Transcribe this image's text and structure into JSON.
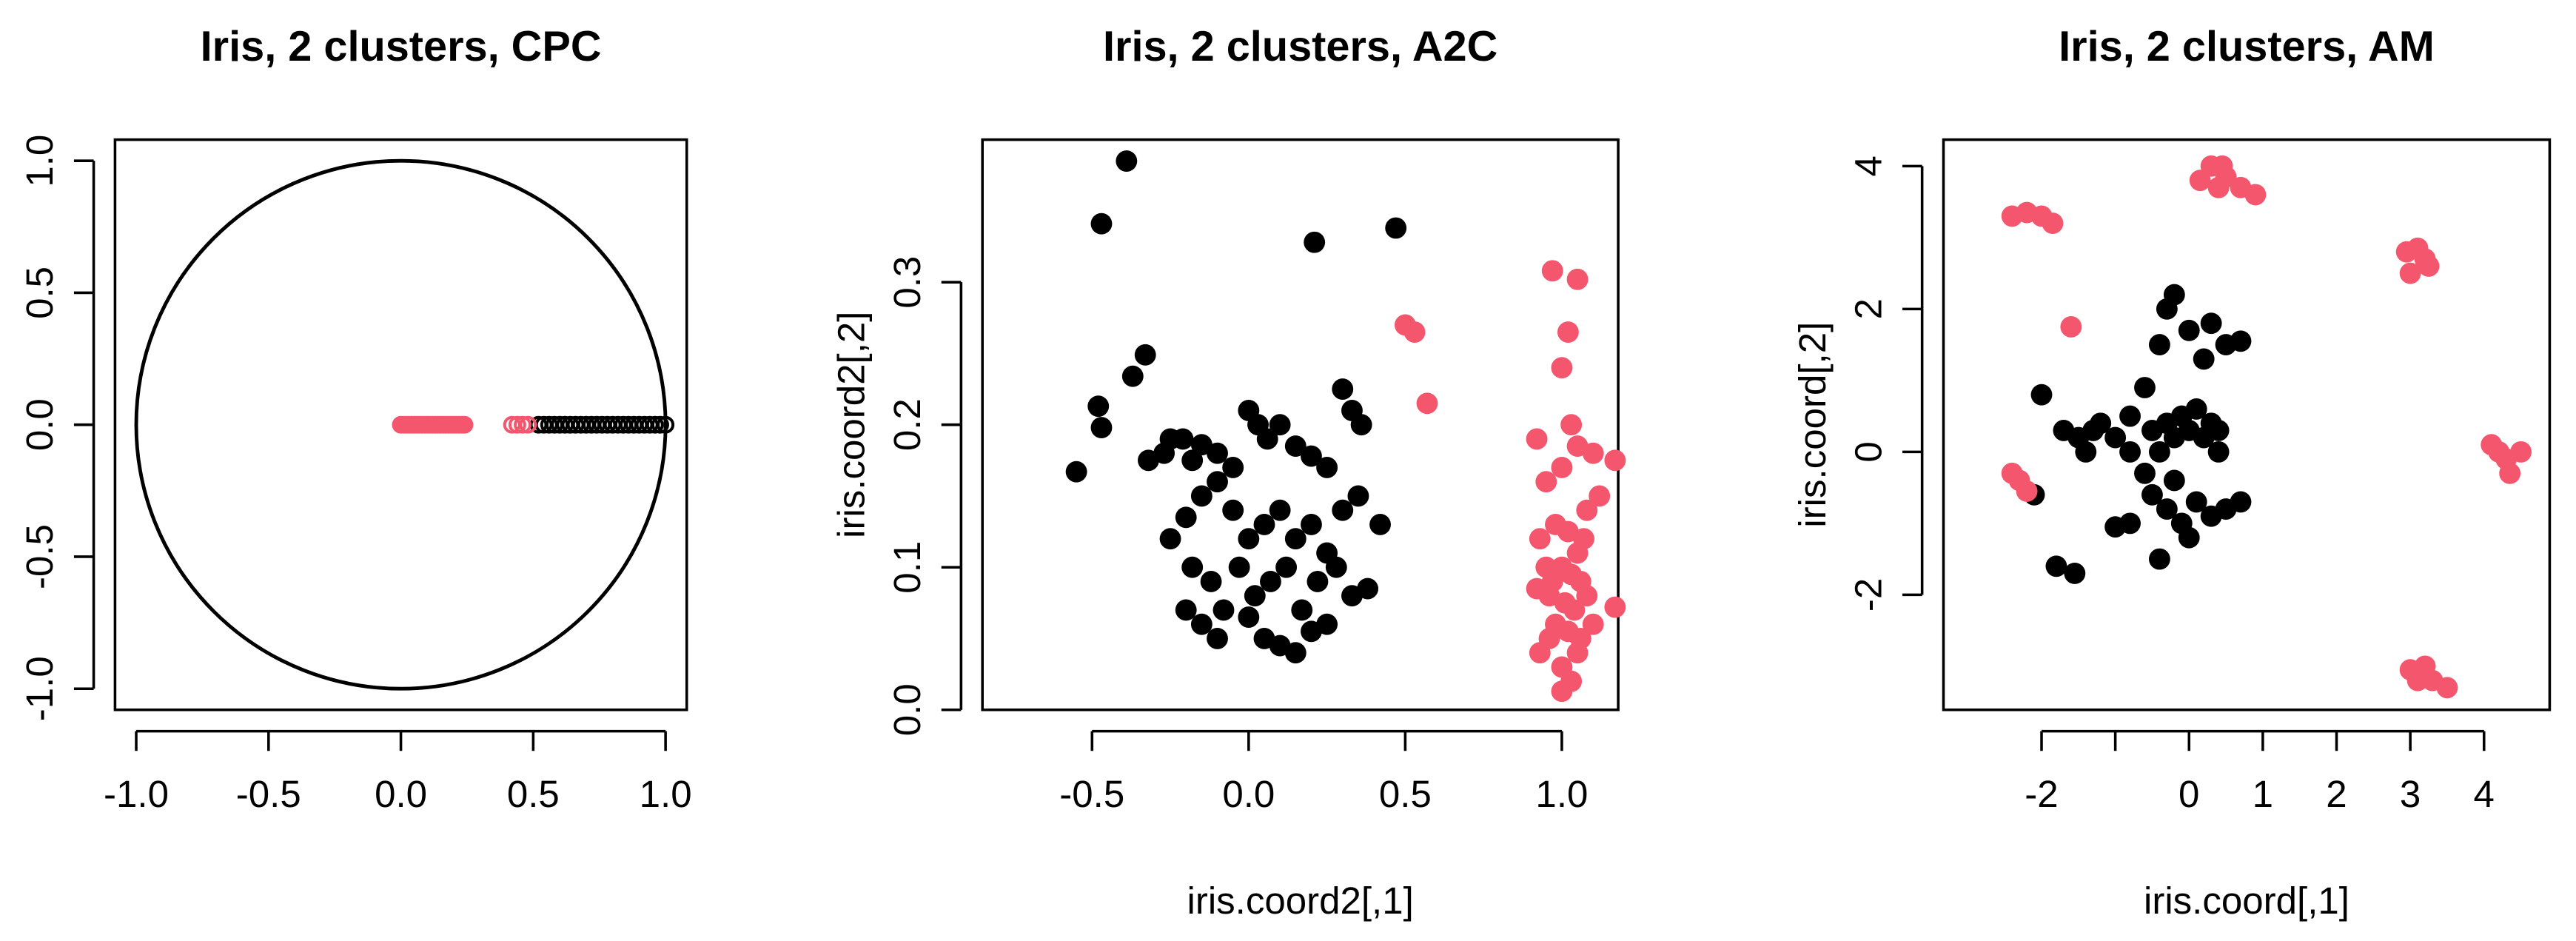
{
  "chart_data": [
    {
      "type": "scatter",
      "title": "Iris, 2 clusters, CPC",
      "xlim": [
        -1.08,
        1.08
      ],
      "ylim": [
        -1.08,
        1.08
      ],
      "xticks": [
        {
          "value": -1,
          "label": "-1.0"
        },
        -0.5,
        {
          "value": 0,
          "label": "0.0"
        },
        0.5,
        {
          "value": 1,
          "label": "1.0"
        }
      ],
      "yticks": [
        {
          "value": -1,
          "label": "-1.0"
        },
        -0.5,
        {
          "value": 0,
          "label": "0.0"
        },
        0.5,
        {
          "value": 1,
          "label": "1.0"
        }
      ],
      "shapes": [
        {
          "type": "circle",
          "cx": 0,
          "cy": 0,
          "r": 1,
          "color": "#000000"
        }
      ],
      "series": [
        {
          "color": "#000000",
          "marker": "open-circle",
          "x": [
            0.52,
            0.54,
            0.56,
            0.58,
            0.6,
            0.62,
            0.64,
            0.66,
            0.68,
            0.7,
            0.72,
            0.74,
            0.76,
            0.78,
            0.8,
            0.82,
            0.84,
            0.86,
            0.88,
            0.9,
            0.92,
            0.94,
            0.96,
            0.98,
            1.0
          ],
          "y": [
            0,
            0,
            0,
            0,
            0,
            0,
            0,
            0,
            0,
            0,
            0,
            0,
            0,
            0,
            0,
            0,
            0,
            0,
            0,
            0,
            0,
            0,
            0,
            0,
            0
          ]
        },
        {
          "color": "#f4566e",
          "marker": "open-circle",
          "x": [
            0,
            0.01,
            0.02,
            0.03,
            0.04,
            0.05,
            0.06,
            0.07,
            0.08,
            0.09,
            0.1,
            0.11,
            0.12,
            0.13,
            0.14,
            0.15,
            0.16,
            0.17,
            0.18,
            0.19,
            0.2,
            0.21,
            0.22,
            0.23,
            0.24,
            0.42,
            0.44,
            0.46,
            0.48
          ],
          "y": [
            0,
            0,
            0,
            0,
            0,
            0,
            0,
            0,
            0,
            0,
            0,
            0,
            0,
            0,
            0,
            0,
            0,
            0,
            0,
            0,
            0,
            0,
            0,
            0,
            0,
            0,
            0,
            0,
            0
          ]
        }
      ]
    },
    {
      "type": "scatter",
      "title": "Iris, 2 clusters, A2C",
      "xlabel": "iris.coord2[,1]",
      "ylabel": "iris.coord2[,2]",
      "xlim": [
        -0.85,
        1.18
      ],
      "ylim": [
        0,
        0.4
      ],
      "xticks": [
        -0.5,
        {
          "value": 0,
          "label": "0.0"
        },
        0.5,
        {
          "value": 1,
          "label": "1.0"
        }
      ],
      "yticks": [
        {
          "value": 0,
          "label": "0.0"
        },
        0.1,
        0.2,
        0.3
      ],
      "series": [
        {
          "color": "#000000",
          "marker": "filled-circle",
          "x": [
            -0.55,
            -0.48,
            -0.47,
            -0.47,
            -0.39,
            -0.37,
            -0.33,
            -0.32,
            -0.27,
            -0.25,
            -0.21,
            -0.18,
            -0.15,
            -0.1,
            -0.05,
            0.0,
            0.03,
            0.06,
            0.1,
            0.15,
            0.2,
            0.25,
            0.3,
            0.33,
            0.36,
            0.21,
            0.47,
            -0.25,
            -0.2,
            -0.15,
            -0.1,
            -0.05,
            0.0,
            0.05,
            0.1,
            0.15,
            0.2,
            0.25,
            0.3,
            0.35,
            0.42,
            -0.18,
            -0.12,
            -0.08,
            -0.03,
            0.02,
            0.07,
            0.12,
            0.17,
            0.22,
            0.28,
            0.33,
            0.38,
            -0.2,
            -0.15,
            -0.1,
            0.0,
            0.05,
            0.1,
            0.15,
            0.2,
            0.25
          ],
          "y": [
            0.167,
            0.213,
            0.198,
            0.341,
            0.385,
            0.234,
            0.249,
            0.175,
            0.18,
            0.19,
            0.19,
            0.175,
            0.186,
            0.18,
            0.17,
            0.21,
            0.2,
            0.19,
            0.2,
            0.185,
            0.178,
            0.17,
            0.225,
            0.21,
            0.2,
            0.328,
            0.338,
            0.12,
            0.135,
            0.15,
            0.16,
            0.14,
            0.12,
            0.13,
            0.14,
            0.12,
            0.13,
            0.11,
            0.14,
            0.15,
            0.13,
            0.1,
            0.09,
            0.07,
            0.1,
            0.08,
            0.09,
            0.1,
            0.07,
            0.09,
            0.1,
            0.08,
            0.085,
            0.07,
            0.06,
            0.05,
            0.065,
            0.05,
            0.045,
            0.04,
            0.055,
            0.06
          ]
        },
        {
          "color": "#f4566e",
          "marker": "filled-circle",
          "x": [
            0.5,
            0.53,
            0.57,
            0.97,
            1.05,
            1.02,
            1.0,
            1.03,
            0.92,
            1.05,
            1.1,
            1.17,
            1.12,
            0.95,
            1.0,
            1.08,
            0.93,
            0.98,
            1.02,
            1.05,
            1.07,
            0.95,
            0.97,
            1.0,
            1.03,
            1.06,
            0.92,
            0.96,
            1.01,
            1.04,
            1.08,
            1.17,
            0.98,
            1.02,
            1.06,
            1.1,
            0.93,
            1.0,
            1.03,
            1.0,
            1.05,
            0.96
          ],
          "y": [
            0.27,
            0.265,
            0.215,
            0.308,
            0.302,
            0.265,
            0.24,
            0.2,
            0.19,
            0.185,
            0.18,
            0.175,
            0.15,
            0.16,
            0.17,
            0.14,
            0.12,
            0.13,
            0.125,
            0.11,
            0.12,
            0.1,
            0.09,
            0.1,
            0.095,
            0.09,
            0.085,
            0.08,
            0.075,
            0.07,
            0.08,
            0.072,
            0.06,
            0.055,
            0.05,
            0.06,
            0.04,
            0.03,
            0.02,
            0.013,
            0.04,
            0.05
          ]
        }
      ]
    },
    {
      "type": "scatter",
      "title": "Iris, 2 clusters, AM",
      "xlabel": "iris.coord[,1]",
      "ylabel": "iris.coord[,2]",
      "xlim": [
        -3.33,
        4.89
      ],
      "ylim": [
        -3.61,
        4.37
      ],
      "xticks": [
        -2,
        {
          "value": -1,
          "label": null
        },
        0,
        1,
        2,
        3,
        4
      ],
      "yticks": [
        -2,
        0,
        2,
        4
      ],
      "series": [
        {
          "color": "#000000",
          "marker": "filled-circle",
          "x": [
            -2.1,
            -1.8,
            -1.55,
            -2.0,
            -1.7,
            -1.5,
            -1.4,
            -1.2,
            -1.0,
            -0.8,
            -0.6,
            -0.4,
            -0.2,
            0.0,
            -0.3,
            0.3,
            0.5,
            0.7,
            0.2,
            -0.5,
            -0.3,
            -0.1,
            0.1,
            0.3,
            0.4,
            0.2,
            0.0,
            -0.2,
            -0.4,
            -0.6,
            -0.5,
            -0.3,
            -0.1,
            0.1,
            0.3,
            0.5,
            0.7,
            -0.8,
            -1.0,
            -0.4,
            0.0,
            -0.8,
            -1.3,
            -0.2,
            0.4
          ],
          "y": [
            -0.6,
            -1.6,
            -1.7,
            0.8,
            0.3,
            0.2,
            0.0,
            0.4,
            0.2,
            0.5,
            0.9,
            1.5,
            2.2,
            1.7,
            2.0,
            1.8,
            1.5,
            1.55,
            1.3,
            0.3,
            0.4,
            0.5,
            0.6,
            0.4,
            0.3,
            0.2,
            0.3,
            0.2,
            0.0,
            -0.3,
            -0.6,
            -0.8,
            -1.0,
            -0.7,
            -0.9,
            -0.8,
            -0.7,
            -1.0,
            -1.05,
            -1.5,
            -1.2,
            0.0,
            0.3,
            -0.4,
            0.0
          ]
        },
        {
          "color": "#f4566e",
          "marker": "filled-circle",
          "x": [
            -2.4,
            -2.2,
            -2.0,
            -1.85,
            0.15,
            0.3,
            0.45,
            0.5,
            0.7,
            0.9,
            0.4,
            2.95,
            3.1,
            3.2,
            3.0,
            3.25,
            4.1,
            4.2,
            4.3,
            4.35,
            4.5,
            3.0,
            3.2,
            3.3,
            3.5,
            3.1,
            -2.4,
            -2.3,
            -2.2,
            -1.6
          ],
          "y": [
            3.3,
            3.35,
            3.3,
            3.2,
            3.8,
            4.0,
            4.0,
            3.85,
            3.7,
            3.6,
            3.7,
            2.8,
            2.85,
            2.7,
            2.5,
            2.6,
            0.1,
            0.0,
            -0.1,
            -0.3,
            0.0,
            -3.05,
            -3.0,
            -3.2,
            -3.3,
            -3.2,
            -0.3,
            -0.4,
            -0.55,
            1.75
          ]
        }
      ]
    }
  ]
}
